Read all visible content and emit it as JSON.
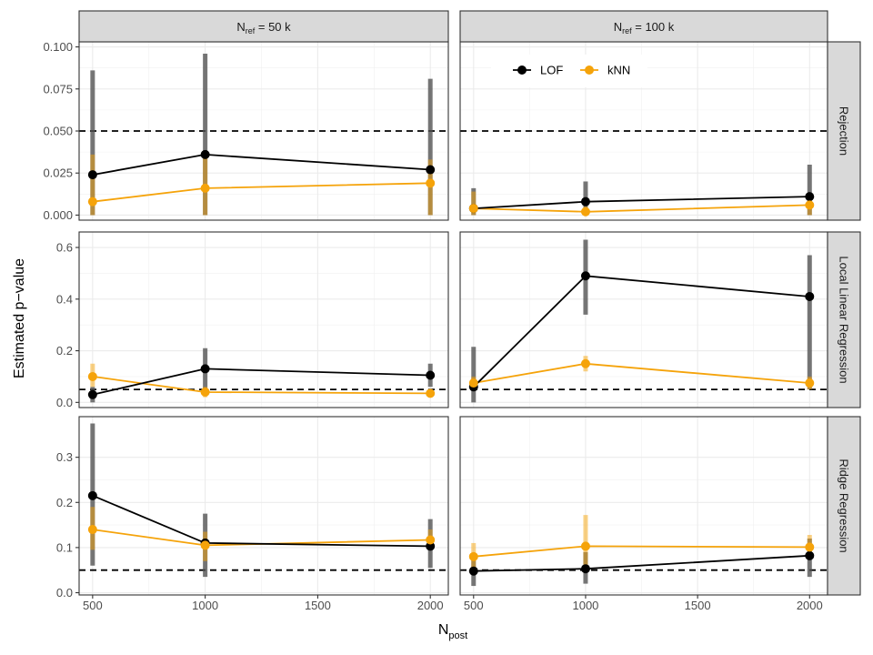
{
  "chart_data": {
    "type": "line",
    "xlabel_main": "N",
    "xlabel_sub": "post",
    "ylabel": "Estimated p−value",
    "x_ticks": [
      500,
      1000,
      1500,
      2000
    ],
    "xlim": [
      440,
      2080
    ],
    "legend": {
      "placement": "top-center",
      "entries": [
        {
          "name": "LOF",
          "color": "#000000"
        },
        {
          "name": "kNN",
          "color": "#F5A30A"
        }
      ]
    },
    "columns": [
      {
        "main": "N",
        "sub": "ref",
        "rest": " = 50 k"
      },
      {
        "main": "N",
        "sub": "ref",
        "rest": " = 100 k"
      }
    ],
    "rows": [
      {
        "label": "Rejection",
        "ylim": [
          -0.003,
          0.103
        ],
        "y_ticks": [
          "0.000",
          "0.025",
          "0.050",
          "0.075",
          "0.100"
        ]
      },
      {
        "label": "Local Linear Regression",
        "ylim": [
          -0.02,
          0.66
        ],
        "y_ticks": [
          "0.0",
          "0.2",
          "0.4",
          "0.6"
        ]
      },
      {
        "label": "Ridge Regression",
        "ylim": [
          -0.005,
          0.39
        ],
        "y_ticks": [
          "0.0",
          "0.1",
          "0.2",
          "0.3"
        ]
      }
    ],
    "reference_line": 0.05,
    "panels": [
      {
        "row": 0,
        "col": 0,
        "series": [
          {
            "name": "LOF",
            "x": [
              500,
              1000,
              2000
            ],
            "y": [
              0.024,
              0.036,
              0.027
            ],
            "lo": [
              0.0,
              0.0,
              0.0
            ],
            "hi": [
              0.086,
              0.096,
              0.081
            ]
          },
          {
            "name": "kNN",
            "x": [
              500,
              1000,
              2000
            ],
            "y": [
              0.008,
              0.016,
              0.019
            ],
            "lo": [
              0.0,
              0.0,
              0.0
            ],
            "hi": [
              0.036,
              0.038,
              0.033
            ]
          }
        ]
      },
      {
        "row": 0,
        "col": 1,
        "series": [
          {
            "name": "LOF",
            "x": [
              500,
              1000,
              2000
            ],
            "y": [
              0.004,
              0.008,
              0.011
            ],
            "lo": [
              0.0,
              0.0,
              0.0
            ],
            "hi": [
              0.016,
              0.02,
              0.03
            ]
          },
          {
            "name": "kNN",
            "x": [
              500,
              1000,
              2000
            ],
            "y": [
              0.004,
              0.002,
              0.006
            ],
            "lo": [
              0.0,
              0.0,
              0.0
            ],
            "hi": [
              0.014,
              0.005,
              0.012
            ]
          }
        ]
      },
      {
        "row": 1,
        "col": 0,
        "series": [
          {
            "name": "LOF",
            "x": [
              500,
              1000,
              2000
            ],
            "y": [
              0.03,
              0.13,
              0.105
            ],
            "lo": [
              0.0,
              0.05,
              0.06
            ],
            "hi": [
              0.06,
              0.21,
              0.15
            ]
          },
          {
            "name": "kNN",
            "x": [
              500,
              1000,
              2000
            ],
            "y": [
              0.1,
              0.04,
              0.035
            ],
            "lo": [
              0.06,
              0.02,
              0.02
            ],
            "hi": [
              0.15,
              0.06,
              0.05
            ]
          }
        ]
      },
      {
        "row": 1,
        "col": 1,
        "series": [
          {
            "name": "LOF",
            "x": [
              500,
              1000,
              2000
            ],
            "y": [
              0.06,
              0.49,
              0.41
            ],
            "lo": [
              0.0,
              0.34,
              0.05
            ],
            "hi": [
              0.215,
              0.63,
              0.57
            ]
          },
          {
            "name": "kNN",
            "x": [
              500,
              1000,
              2000
            ],
            "y": [
              0.075,
              0.15,
              0.075
            ],
            "lo": [
              0.05,
              0.12,
              0.05
            ],
            "hi": [
              0.1,
              0.18,
              0.1
            ]
          }
        ]
      },
      {
        "row": 2,
        "col": 0,
        "series": [
          {
            "name": "LOF",
            "x": [
              500,
              1000,
              2000
            ],
            "y": [
              0.215,
              0.11,
              0.103
            ],
            "lo": [
              0.06,
              0.035,
              0.055
            ],
            "hi": [
              0.375,
              0.175,
              0.163
            ]
          },
          {
            "name": "kNN",
            "x": [
              500,
              1000,
              2000
            ],
            "y": [
              0.14,
              0.105,
              0.117
            ],
            "lo": [
              0.095,
              0.07,
              0.095
            ],
            "hi": [
              0.19,
              0.135,
              0.14
            ]
          }
        ]
      },
      {
        "row": 2,
        "col": 1,
        "series": [
          {
            "name": "LOF",
            "x": [
              500,
              1000,
              2000
            ],
            "y": [
              0.048,
              0.053,
              0.082
            ],
            "lo": [
              0.015,
              0.02,
              0.035
            ],
            "hi": [
              0.085,
              0.09,
              0.12
            ]
          },
          {
            "name": "kNN",
            "x": [
              500,
              1000,
              2000
            ],
            "y": [
              0.08,
              0.103,
              0.101
            ],
            "lo": [
              0.055,
              0.06,
              0.075
            ],
            "hi": [
              0.11,
              0.172,
              0.128
            ]
          }
        ]
      }
    ]
  }
}
